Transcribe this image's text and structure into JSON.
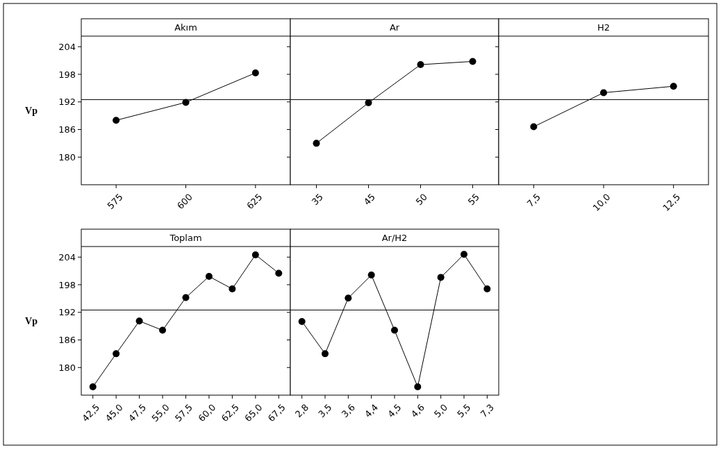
{
  "chart_data": [
    {
      "type": "line",
      "title": "Akım",
      "ylabel": "Vp",
      "categories": [
        "575",
        "600",
        "625"
      ],
      "values": [
        188.0,
        191.9,
        198.3
      ],
      "color": "#000000",
      "marker": "circle",
      "ylim": [
        174,
        206.3
      ],
      "yticks": [
        180,
        186,
        192,
        198,
        204
      ],
      "ref_lines": [
        {
          "axis": "y",
          "value": 192.5,
          "color": "#000000"
        }
      ]
    },
    {
      "type": "line",
      "title": "Ar",
      "categories": [
        "35",
        "45",
        "50",
        "55"
      ],
      "values": [
        183.0,
        191.8,
        200.1,
        200.8
      ],
      "color": "#000000",
      "marker": "circle",
      "ylim": [
        174,
        206.3
      ],
      "yticks": [
        180,
        186,
        192,
        198,
        204
      ],
      "tick_labels": "x",
      "ref_lines": [
        {
          "axis": "y",
          "value": 192.5,
          "color": "#000000"
        }
      ]
    },
    {
      "type": "line",
      "title": "H2",
      "categories": [
        "7,5",
        "10,0",
        "12,5"
      ],
      "values": [
        186.6,
        194.0,
        195.4
      ],
      "color": "#000000",
      "marker": "circle",
      "ylim": [
        174,
        206.3
      ],
      "yticks": [
        180,
        186,
        192,
        198,
        204
      ],
      "tick_labels": "x",
      "ref_lines": [
        {
          "axis": "y",
          "value": 192.5,
          "color": "#000000"
        }
      ]
    },
    {
      "type": "line",
      "title": "Toplam",
      "ylabel": "Vp",
      "categories": [
        "42,5",
        "45,0",
        "47,5",
        "55,0",
        "57,5",
        "60,0",
        "62,5",
        "65,0",
        "67,5"
      ],
      "values": [
        175.8,
        183.0,
        190.1,
        188.1,
        195.2,
        199.8,
        197.1,
        204.5,
        200.5
      ],
      "color": "#000000",
      "marker": "circle",
      "ylim": [
        174,
        206.3
      ],
      "yticks": [
        180,
        186,
        192,
        198,
        204
      ],
      "ref_lines": [
        {
          "axis": "y",
          "value": 192.5,
          "color": "#000000"
        }
      ]
    },
    {
      "type": "line",
      "title": "Ar/H2",
      "categories": [
        "2,8",
        "3,5",
        "3,6",
        "4,4",
        "4,5",
        "4,6",
        "5,0",
        "5,5",
        "7,3"
      ],
      "values": [
        190.0,
        183.0,
        195.1,
        200.1,
        188.1,
        175.8,
        199.6,
        204.6,
        197.1
      ],
      "color": "#000000",
      "marker": "circle",
      "ylim": [
        174,
        206.3
      ],
      "yticks": [
        180,
        186,
        192,
        198,
        204
      ],
      "tick_labels": "x",
      "ref_lines": [
        {
          "axis": "y",
          "value": 192.5,
          "color": "#000000"
        }
      ]
    }
  ]
}
